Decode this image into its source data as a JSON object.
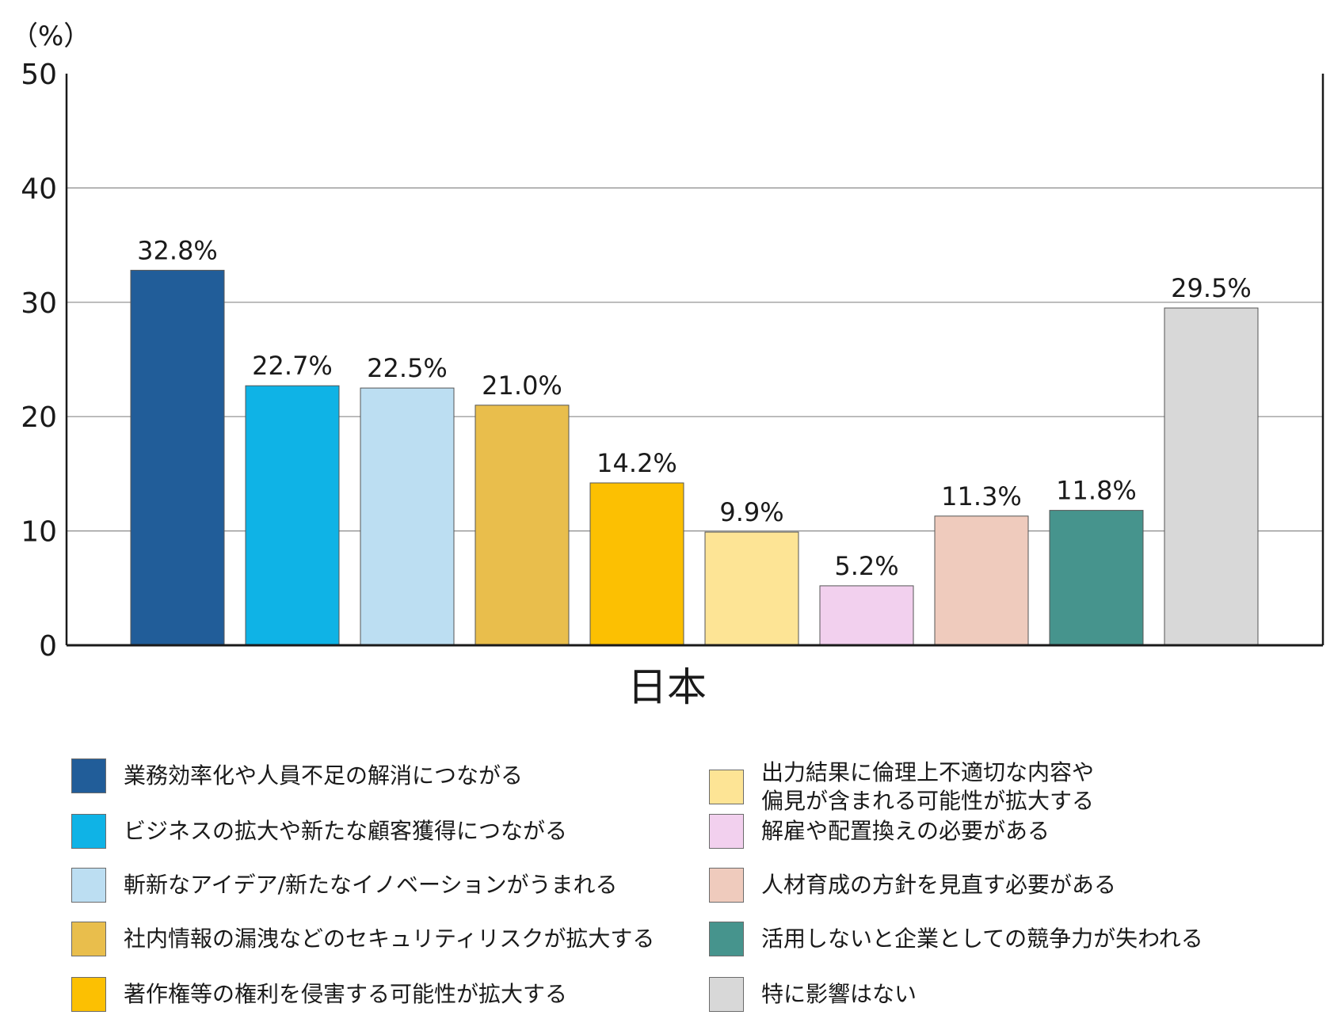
{
  "unit_label": "（%）",
  "chart_data": {
    "type": "bar",
    "categories": [
      "日本"
    ],
    "ylim": [
      0,
      50
    ],
    "yticks": [
      0,
      10,
      20,
      30,
      40,
      50
    ],
    "grid": true,
    "legend_position": "bottom",
    "series": [
      {
        "name": "業務効率化や人員不足の解消につながる",
        "value": 32.8,
        "label": "32.8%",
        "color": "#215d99"
      },
      {
        "name": "ビジネスの拡大や新たな顧客獲得につながる",
        "value": 22.7,
        "label": "22.7%",
        "color": "#0fb3e6"
      },
      {
        "name": "斬新なアイデア/新たなイノベーションがうまれる",
        "value": 22.5,
        "label": "22.5%",
        "color": "#bcdef2"
      },
      {
        "name": "社内情報の漏洩などのセキュリティリスクが拡大する",
        "value": 21.0,
        "label": "21.0%",
        "color": "#e9be4c"
      },
      {
        "name": "著作権等の権利を侵害する可能性が拡大する",
        "value": 14.2,
        "label": "14.2%",
        "color": "#fcc002"
      },
      {
        "name": "出力結果に倫理上不適切な内容や\n偏見が含まれる可能性が拡大する",
        "value": 9.9,
        "label": "9.9%",
        "color": "#fde495"
      },
      {
        "name": "解雇や配置換えの必要がある",
        "value": 5.2,
        "label": "5.2%",
        "color": "#f2d0ee"
      },
      {
        "name": "人材育成の方針を見直す必要がある",
        "value": 11.3,
        "label": "11.3%",
        "color": "#efcbbd"
      },
      {
        "name": "活用しないと企業としての競争力が失われる",
        "value": 11.8,
        "label": "11.8%",
        "color": "#46948d"
      },
      {
        "name": "特に影響はない",
        "value": 29.5,
        "label": "29.5%",
        "color": "#d8d8d8"
      }
    ]
  }
}
